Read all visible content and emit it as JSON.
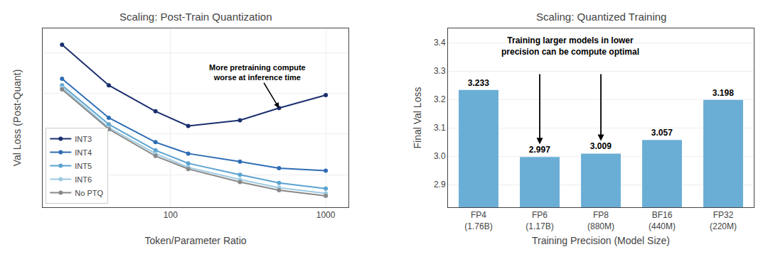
{
  "chart_data": [
    {
      "type": "line",
      "title": "Scaling: Post-Train Quantization",
      "xlabel": "Token/Parameter Ratio",
      "ylabel": "Val Loss (Post-Quant)",
      "x": [
        20,
        40,
        80,
        130,
        280,
        500,
        1000
      ],
      "series": [
        {
          "name": "INT3",
          "color": "#1a2f6e",
          "marker": "circle",
          "values": [
            4.1,
            3.6,
            3.28,
            3.1,
            3.17,
            3.32,
            3.48
          ]
        },
        {
          "name": "INT4",
          "color": "#2e6db4",
          "marker": "circle",
          "values": [
            3.68,
            3.2,
            2.9,
            2.76,
            2.66,
            2.58,
            2.55
          ]
        },
        {
          "name": "INT5",
          "color": "#5ba3d0",
          "marker": "circle",
          "values": [
            3.6,
            3.12,
            2.8,
            2.64,
            2.5,
            2.4,
            2.33
          ]
        },
        {
          "name": "INT6",
          "color": "#9dcae1",
          "marker": "circle",
          "values": [
            3.57,
            3.08,
            2.76,
            2.59,
            2.44,
            2.34,
            2.27
          ]
        },
        {
          "name": "No PTQ",
          "color": "#888888",
          "marker": "circle",
          "values": [
            3.55,
            3.06,
            2.73,
            2.57,
            2.41,
            2.31,
            2.24
          ]
        }
      ],
      "log": "x",
      "xlim": [
        15,
        1400
      ],
      "xticks": [
        100,
        1000
      ],
      "ylim": [
        2.1,
        4.3
      ],
      "yticks": [
        2.5,
        3,
        3.5,
        4
      ],
      "tick_labels": "x",
      "grid": true,
      "legend": "lower left",
      "annotations": [
        {
          "text": "More pretraining compute\nworse at inference time",
          "x": 500,
          "y": 3.32
        }
      ]
    },
    {
      "type": "bar",
      "title": "Scaling: Quantized Training",
      "xlabel": "Training Precision (Model Size)",
      "ylabel": "Final Val Loss",
      "categories": [
        "FP4\n(1.76B)",
        "FP6\n(1.17B)",
        "FP8\n(880M)",
        "BF16\n(440M)",
        "FP32\n(220M)"
      ],
      "values": [
        3.233,
        2.997,
        3.009,
        3.057,
        3.198
      ],
      "color": "#6aaed6",
      "ylim": [
        2.82,
        3.45
      ],
      "yticks": [
        2.9,
        {
          "value": 3,
          "label": "3.0"
        },
        3.1,
        3.2,
        3.3,
        3.4
      ],
      "grid": "y",
      "data_labels": true,
      "annotations": [
        {
          "text": "Training larger models in lower\nprecision can be compute optimal",
          "targets": [
            "FP6\n(1.17B)",
            "FP8\n(880M)"
          ]
        }
      ]
    }
  ]
}
